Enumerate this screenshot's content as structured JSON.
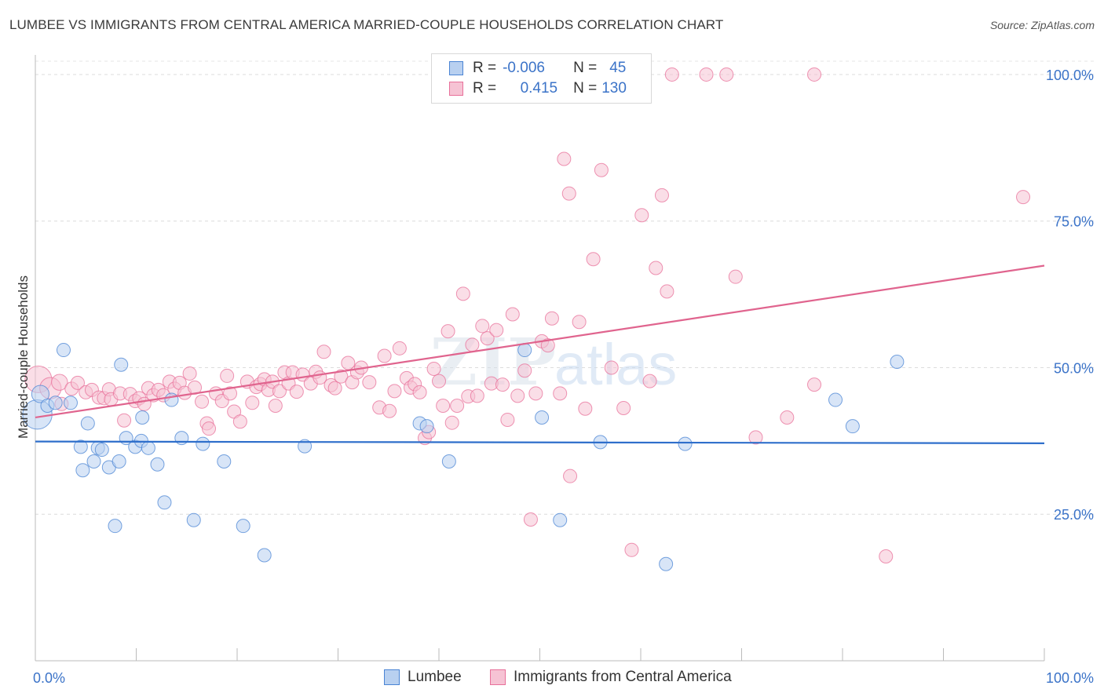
{
  "header": {
    "title": "LUMBEE VS IMMIGRANTS FROM CENTRAL AMERICA MARRIED-COUPLE HOUSEHOLDS CORRELATION CHART",
    "source": "Source: ZipAtlas.com"
  },
  "watermark": {
    "zip": "ZIP",
    "atlas": "atlas"
  },
  "colors": {
    "blue": "#4a84d4",
    "blue_fill": "#b8d0f0",
    "pink": "#e8709a",
    "pink_fill": "#f6c3d4",
    "axis_text": "#3b73c8"
  },
  "legend_top": {
    "rows": [
      {
        "r_label": "R =",
        "r_value": "-0.006",
        "n_label": "N =",
        "n_value": "45"
      },
      {
        "r_label": "R =",
        "r_value": "0.415",
        "n_label": "N =",
        "n_value": "130"
      }
    ]
  },
  "chart_data": {
    "type": "scatter",
    "title": "LUMBEE VS IMMIGRANTS FROM CENTRAL AMERICA MARRIED-COUPLE HOUSEHOLDS CORRELATION CHART",
    "xlabel": "",
    "ylabel": "Married-couple Households",
    "xlim": [
      0,
      100
    ],
    "ylim": [
      0,
      102
    ],
    "x_tick_labels": [
      "0.0%",
      "100.0%"
    ],
    "y_ticks": [
      25,
      50,
      75,
      100
    ],
    "y_tick_labels": [
      "25.0%",
      "50.0%",
      "75.0%",
      "100.0%"
    ],
    "grid": true,
    "legend_position": "bottom",
    "series": [
      {
        "name": "Lumbee",
        "color": "#4a84d4",
        "trend": {
          "x": [
            0,
            100
          ],
          "y": [
            37.4,
            37.1
          ]
        },
        "points": [
          [
            0.2,
            42,
            2.2
          ],
          [
            0.5,
            45.5,
            1.3
          ],
          [
            1.2,
            43.5,
            1
          ],
          [
            2,
            44,
            1
          ],
          [
            2.8,
            53,
            1
          ],
          [
            3.5,
            44,
            1
          ],
          [
            4.5,
            36.5,
            1
          ],
          [
            4.7,
            32.5,
            1
          ],
          [
            5.2,
            40.5,
            1
          ],
          [
            5.8,
            34,
            1
          ],
          [
            6.2,
            36.3,
            1
          ],
          [
            6.6,
            36,
            1
          ],
          [
            7.3,
            33,
            1
          ],
          [
            7.9,
            23,
            1
          ],
          [
            8.3,
            34,
            1
          ],
          [
            8.5,
            50.5,
            1
          ],
          [
            9,
            38,
            1
          ],
          [
            9.9,
            36.5,
            1
          ],
          [
            10.5,
            37.5,
            1
          ],
          [
            10.6,
            41.5,
            1
          ],
          [
            11.2,
            36.3,
            1
          ],
          [
            12.1,
            33.5,
            1
          ],
          [
            12.8,
            27,
            1
          ],
          [
            13.5,
            44.5,
            1
          ],
          [
            14.5,
            38,
            1
          ],
          [
            15.7,
            24,
            1
          ],
          [
            16.6,
            37,
            1
          ],
          [
            18.7,
            34,
            1
          ],
          [
            20.6,
            23,
            1
          ],
          [
            22.7,
            18,
            1
          ],
          [
            26.7,
            36.6,
            1
          ],
          [
            38.1,
            40.5,
            1
          ],
          [
            38.8,
            40,
            1
          ],
          [
            41,
            34,
            1
          ],
          [
            48.5,
            53,
            1
          ],
          [
            50.2,
            41.5,
            1
          ],
          [
            52,
            24,
            1
          ],
          [
            56,
            37.3,
            1
          ],
          [
            62.5,
            16.5,
            1
          ],
          [
            64.4,
            37,
            1
          ],
          [
            79.3,
            44.5,
            1
          ],
          [
            81,
            40,
            1
          ],
          [
            85.4,
            51,
            1
          ]
        ]
      },
      {
        "name": "Immigrants from Central America",
        "color": "#e8709a",
        "trend": {
          "x": [
            0,
            100
          ],
          "y": [
            41.5,
            67.4
          ]
        },
        "points": [
          [
            0.3,
            48,
            2.0
          ],
          [
            1.5,
            46.5,
            1.6
          ],
          [
            2.4,
            47.5,
            1.2
          ],
          [
            2.6,
            43.8,
            1
          ],
          [
            3.6,
            46.4,
            1
          ],
          [
            4.2,
            47.4,
            1
          ],
          [
            5,
            45.8,
            1
          ],
          [
            5.6,
            46.2,
            1
          ],
          [
            6.3,
            44.9,
            1
          ],
          [
            6.8,
            44.8,
            1
          ],
          [
            7.3,
            46.3,
            1
          ],
          [
            7.5,
            44.6,
            1
          ],
          [
            8.4,
            45.6,
            1
          ],
          [
            8.8,
            41,
            1
          ],
          [
            9.4,
            45.5,
            1
          ],
          [
            9.9,
            44.3,
            1
          ],
          [
            10.3,
            44.8,
            1
          ],
          [
            10.8,
            43.8,
            1
          ],
          [
            11.2,
            46.5,
            1
          ],
          [
            11.7,
            45.3,
            1
          ],
          [
            12.2,
            46.2,
            1
          ],
          [
            12.7,
            45.3,
            1
          ],
          [
            13.3,
            47.6,
            1
          ],
          [
            13.8,
            46.4,
            1
          ],
          [
            14.3,
            47.4,
            1
          ],
          [
            14.8,
            45.7,
            1
          ],
          [
            15.3,
            49,
            1
          ],
          [
            15.8,
            46.6,
            1
          ],
          [
            16.5,
            44.2,
            1
          ],
          [
            17,
            40.5,
            1
          ],
          [
            17.2,
            39.6,
            1
          ],
          [
            17.9,
            45.6,
            1
          ],
          [
            18.5,
            44.3,
            1
          ],
          [
            19,
            48.6,
            1
          ],
          [
            19.3,
            45.6,
            1
          ],
          [
            19.7,
            42.5,
            1
          ],
          [
            20.3,
            40.8,
            1
          ],
          [
            21,
            47.6,
            1
          ],
          [
            21.5,
            44,
            1
          ],
          [
            21.9,
            46.7,
            1
          ],
          [
            22.3,
            47.2,
            1
          ],
          [
            22.7,
            48,
            1
          ],
          [
            23.1,
            46.2,
            1
          ],
          [
            23.5,
            47.6,
            1
          ],
          [
            23.8,
            43.5,
            1
          ],
          [
            24.2,
            46,
            1
          ],
          [
            24.7,
            49.2,
            1
          ],
          [
            25.1,
            47.3,
            1
          ],
          [
            25.5,
            49.2,
            1
          ],
          [
            25.9,
            45.9,
            1
          ],
          [
            26.5,
            48.8,
            1
          ],
          [
            27.3,
            47.3,
            1
          ],
          [
            27.8,
            49.3,
            1
          ],
          [
            28.2,
            48.3,
            1
          ],
          [
            28.6,
            52.7,
            1
          ],
          [
            29.3,
            47,
            1
          ],
          [
            29.7,
            46.5,
            1
          ],
          [
            30.3,
            48.5,
            1
          ],
          [
            31,
            50.8,
            1
          ],
          [
            31.4,
            47.5,
            1
          ],
          [
            31.9,
            49.2,
            1
          ],
          [
            32.3,
            50,
            1
          ],
          [
            33.1,
            47.5,
            1
          ],
          [
            34.1,
            43.2,
            1
          ],
          [
            34.6,
            52,
            1
          ],
          [
            35.1,
            42.6,
            1
          ],
          [
            35.6,
            46,
            1
          ],
          [
            36.1,
            53.3,
            1
          ],
          [
            36.8,
            48.2,
            1
          ],
          [
            37.2,
            46.6,
            1
          ],
          [
            37.6,
            47.2,
            1
          ],
          [
            38.1,
            45.8,
            1
          ],
          [
            38.6,
            38,
            1
          ],
          [
            39,
            39,
            1
          ],
          [
            39.5,
            49.8,
            1
          ],
          [
            40,
            47.7,
            1
          ],
          [
            40.4,
            43.5,
            1
          ],
          [
            40.9,
            56.2,
            1
          ],
          [
            41.3,
            40.6,
            1
          ],
          [
            41.8,
            43.5,
            1
          ],
          [
            42.4,
            62.6,
            1
          ],
          [
            42.9,
            45.1,
            1
          ],
          [
            43.3,
            53.9,
            1
          ],
          [
            43.8,
            45.2,
            1
          ],
          [
            44.3,
            57.1,
            1
          ],
          [
            44.8,
            55,
            1
          ],
          [
            45.2,
            47.3,
            1
          ],
          [
            45.7,
            56.4,
            1
          ],
          [
            46.3,
            47.1,
            1
          ],
          [
            46.8,
            41.1,
            1
          ],
          [
            47.3,
            59.1,
            1
          ],
          [
            47.8,
            45.2,
            1
          ],
          [
            48.5,
            49.5,
            1
          ],
          [
            49.1,
            24.1,
            1
          ],
          [
            49.6,
            45.6,
            1
          ],
          [
            50.2,
            54.5,
            1
          ],
          [
            50.8,
            53.8,
            1
          ],
          [
            51.2,
            58.4,
            1
          ],
          [
            52,
            45.6,
            1
          ],
          [
            52.4,
            85.6,
            1
          ],
          [
            52.9,
            79.7,
            1
          ],
          [
            53,
            31.5,
            1
          ],
          [
            53.9,
            57.8,
            1
          ],
          [
            54.5,
            43,
            1
          ],
          [
            55.3,
            68.5,
            1
          ],
          [
            56.1,
            83.7,
            1
          ],
          [
            57.1,
            50,
            1
          ],
          [
            58.3,
            43.1,
            1
          ],
          [
            59.1,
            18.9,
            1
          ],
          [
            60.1,
            76,
            1
          ],
          [
            60.9,
            47.7,
            1
          ],
          [
            61.5,
            67,
            1
          ],
          [
            62.1,
            79.4,
            1
          ],
          [
            62.6,
            63,
            1
          ],
          [
            63.1,
            100,
            1
          ],
          [
            66.5,
            100,
            1
          ],
          [
            68.5,
            100,
            1
          ],
          [
            69.4,
            65.5,
            1
          ],
          [
            71.4,
            38.1,
            1
          ],
          [
            74.5,
            41.5,
            1
          ],
          [
            77.2,
            47.1,
            1
          ],
          [
            77.2,
            100,
            1
          ],
          [
            84.3,
            17.8,
            1
          ],
          [
            97.9,
            79.1,
            1
          ]
        ]
      }
    ]
  },
  "bottom_legend": {
    "items": [
      {
        "label": "Lumbee"
      },
      {
        "label": "Immigrants from Central America"
      }
    ]
  }
}
